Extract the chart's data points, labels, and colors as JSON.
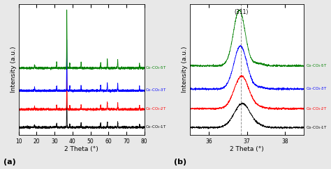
{
  "colors": [
    "black",
    "red",
    "blue",
    "green"
  ],
  "labels": [
    "Co-CO$_3$-1T",
    "Co-CO$_3$-2T",
    "Co-CO$_3$-3T",
    "Co-CO$_3$-5T"
  ],
  "offsets_a": [
    0,
    0.32,
    0.65,
    1.05
  ],
  "offsets_b": [
    0,
    0.22,
    0.45,
    0.72
  ],
  "xlabel": "2 Theta (°)",
  "ylabel": "Intensity (a.u.)",
  "panel_a_label": "(a)",
  "panel_b_label": "(b)",
  "panel_b_annotation": "(311)",
  "dashed_line_x": 36.85,
  "xlim_a": [
    10,
    80
  ],
  "xlim_b": [
    35.5,
    38.5
  ],
  "xticks_a": [
    10,
    20,
    30,
    40,
    50,
    60,
    70,
    80
  ],
  "xticks_b": [
    36,
    37,
    38
  ],
  "background_color": "#ffffff",
  "fig_bg": "#e8e8e8"
}
